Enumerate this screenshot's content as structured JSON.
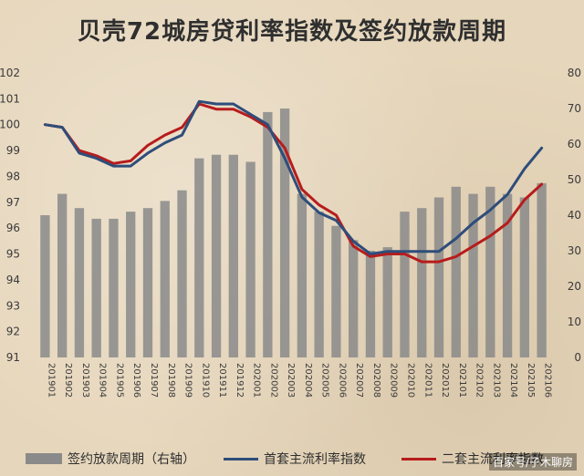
{
  "title": "贝壳72城房贷利率指数及签约放款周期",
  "watermark": "百家号/子木聊房",
  "colors": {
    "bars": "#8a8a8a",
    "first_home": "#2e4d7a",
    "second_home": "#b71c1c"
  },
  "chart_data": {
    "type": "bar+line",
    "categories": [
      "201901",
      "201902",
      "201903",
      "201904",
      "201905",
      "201906",
      "201907",
      "201908",
      "201909",
      "201910",
      "201911",
      "201912",
      "202001",
      "202002",
      "202003",
      "202004",
      "202005",
      "202006",
      "202007",
      "202008",
      "202009",
      "202010",
      "202011",
      "202012",
      "202101",
      "202102",
      "202103",
      "202104",
      "202105",
      "202106"
    ],
    "y_left": {
      "min": 91,
      "max": 102,
      "ticks": [
        91,
        92,
        93,
        94,
        95,
        96,
        97,
        98,
        99,
        100,
        101,
        102
      ]
    },
    "y_right": {
      "min": 0,
      "max": 80,
      "ticks": [
        0,
        10,
        20,
        30,
        40,
        50,
        60,
        70,
        80
      ]
    },
    "series": [
      {
        "name": "签约放款周期（右轴）",
        "type": "bar",
        "axis": "right",
        "values": [
          40,
          46,
          42,
          39,
          39,
          41,
          42,
          44,
          47,
          56,
          57,
          57,
          55,
          69,
          70,
          46,
          41,
          37,
          33,
          30,
          31,
          41,
          42,
          45,
          48,
          46,
          48,
          46,
          45,
          49
        ]
      },
      {
        "name": "首套主流利率指数",
        "type": "line",
        "axis": "left",
        "values": [
          100.0,
          99.9,
          98.9,
          98.7,
          98.4,
          98.4,
          98.9,
          99.3,
          99.6,
          100.9,
          100.8,
          100.8,
          100.4,
          100.0,
          98.7,
          97.2,
          96.6,
          96.3,
          95.5,
          95.0,
          95.1,
          95.1,
          95.1,
          95.1,
          95.6,
          96.2,
          96.7,
          97.3,
          98.3,
          99.1
        ]
      },
      {
        "name": "二套主流利率指数",
        "type": "line",
        "axis": "left",
        "values": [
          100.0,
          99.9,
          99.0,
          98.8,
          98.5,
          98.6,
          99.2,
          99.6,
          99.9,
          100.8,
          100.6,
          100.6,
          100.3,
          99.9,
          99.1,
          97.5,
          96.9,
          96.5,
          95.3,
          94.9,
          95.0,
          95.0,
          94.7,
          94.7,
          94.9,
          95.3,
          95.7,
          96.2,
          97.1,
          97.7
        ]
      }
    ],
    "legend": [
      "签约放款周期（右轴）",
      "首套主流利率指数",
      "二套主流利率指数"
    ],
    "legend_position": "bottom"
  }
}
